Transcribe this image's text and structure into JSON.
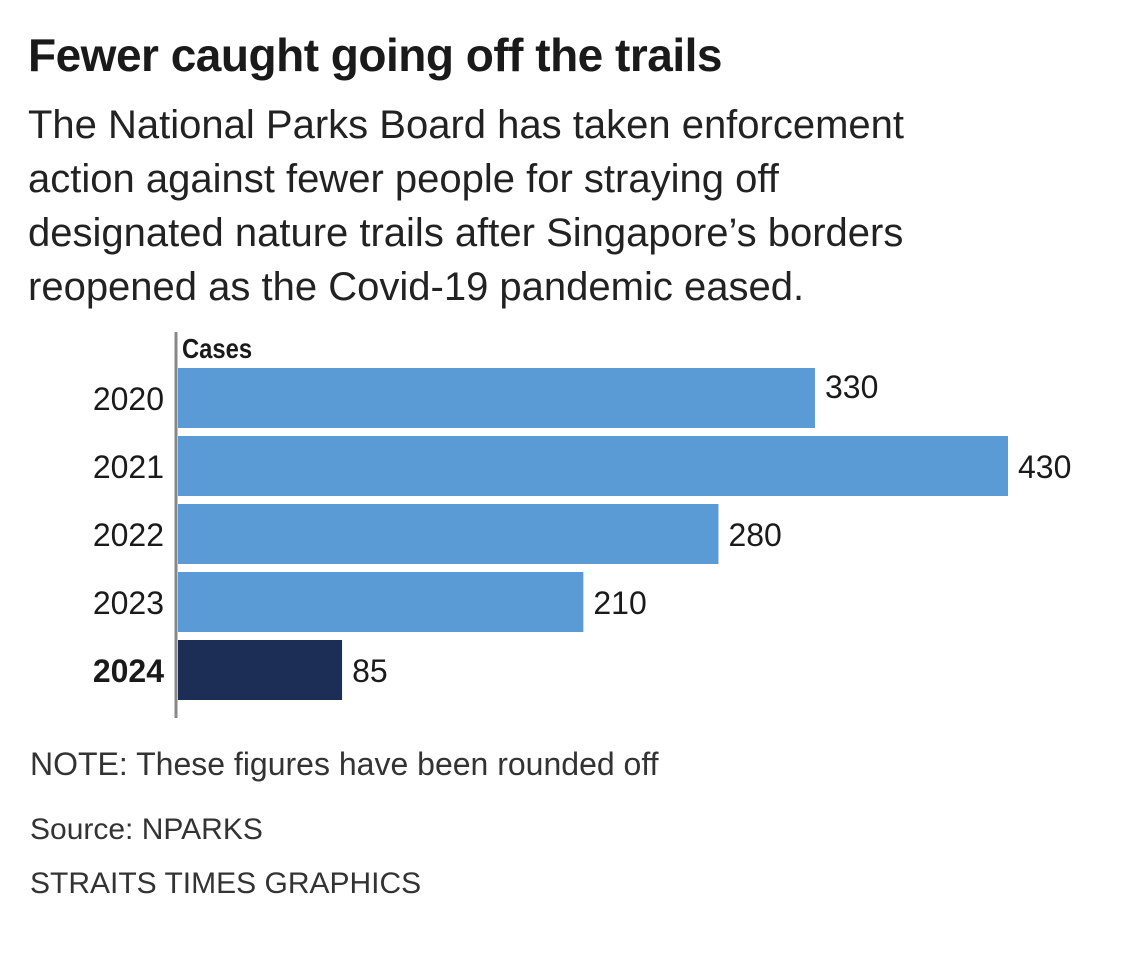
{
  "title": "Fewer caught going off the trails",
  "subtitle_lines": [
    "The National Parks Board has taken enforcement",
    "action against fewer people for straying off",
    "designated nature trails after Singapore’s borders",
    "reopened as the Covid-19 pandemic eased."
  ],
  "note": "NOTE: These figures have been rounded off",
  "source": "Source: NPARKS",
  "credit": "STRAITS TIMES GRAPHICS",
  "colors": {
    "bar": "#5b9bd5",
    "highlight_bar": "#1c2e55",
    "axis": "#888888"
  },
  "chart_data": {
    "type": "bar",
    "orientation": "horizontal",
    "categories": [
      "2020",
      "2021",
      "2022",
      "2023",
      "2024"
    ],
    "values": [
      330,
      430,
      280,
      210,
      85
    ],
    "value_labels": [
      "330",
      "430",
      "280",
      "210",
      "85"
    ],
    "highlight_category": "2024",
    "xlabel": "Cases",
    "xlim": [
      0,
      430
    ],
    "grid": false,
    "legend": "none"
  }
}
